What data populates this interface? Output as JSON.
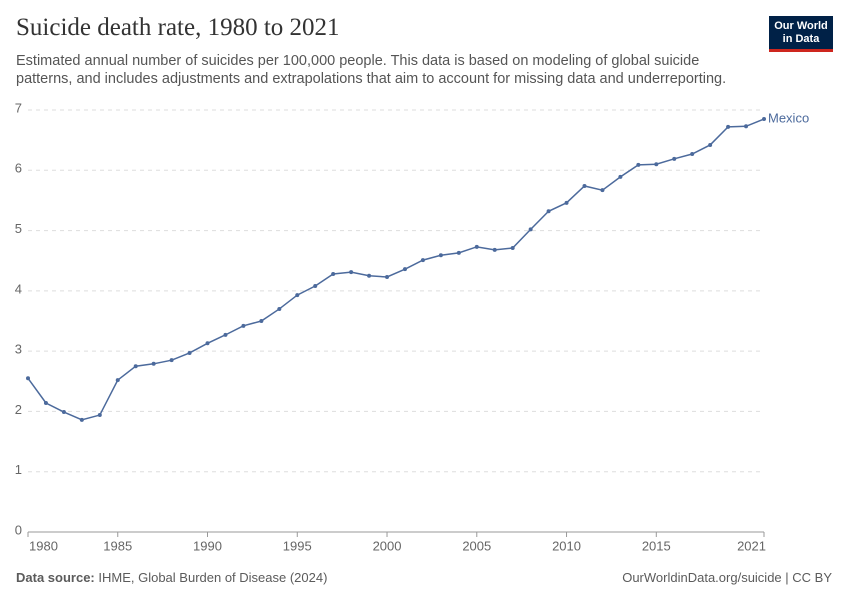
{
  "chart_data": {
    "type": "line",
    "title": "Suicide death rate, 1980 to 2021",
    "subtitle": "Estimated annual number of suicides per 100,000 people. This data is based on modeling of global suicide patterns, and includes adjustments and extrapolations that aim to account for missing data and underreporting.",
    "logo": [
      "Our World",
      "in Data"
    ],
    "source_label": "Data source:",
    "source": "IHME, Global Burden of Disease (2024)",
    "footer_right": "OurWorldinData.org/suicide | CC BY",
    "x": [
      1980,
      1981,
      1982,
      1983,
      1984,
      1985,
      1986,
      1987,
      1988,
      1989,
      1990,
      1991,
      1992,
      1993,
      1994,
      1995,
      1996,
      1997,
      1998,
      1999,
      2000,
      2001,
      2002,
      2003,
      2004,
      2005,
      2006,
      2007,
      2008,
      2009,
      2010,
      2011,
      2012,
      2013,
      2014,
      2015,
      2016,
      2017,
      2018,
      2019,
      2020,
      2021
    ],
    "series": [
      {
        "name": "Mexico",
        "color": "#4c6a9c",
        "values": [
          2.55,
          2.14,
          1.99,
          1.86,
          1.94,
          2.52,
          2.75,
          2.79,
          2.85,
          2.97,
          3.13,
          3.27,
          3.42,
          3.5,
          3.7,
          3.93,
          4.08,
          4.28,
          4.31,
          4.25,
          4.23,
          4.36,
          4.51,
          4.59,
          4.63,
          4.73,
          4.68,
          4.71,
          5.02,
          5.32,
          5.46,
          5.74,
          5.67,
          5.89,
          6.09,
          6.1,
          6.19,
          6.27,
          6.42,
          6.72,
          6.73,
          6.85
        ]
      }
    ],
    "xlim": [
      1980,
      2021
    ],
    "xticks": [
      1980,
      1985,
      1990,
      1995,
      2000,
      2005,
      2010,
      2015,
      2021
    ],
    "ylim": [
      0,
      7
    ],
    "yticks": [
      0,
      1,
      2,
      3,
      4,
      5,
      6,
      7
    ],
    "grid": true
  }
}
